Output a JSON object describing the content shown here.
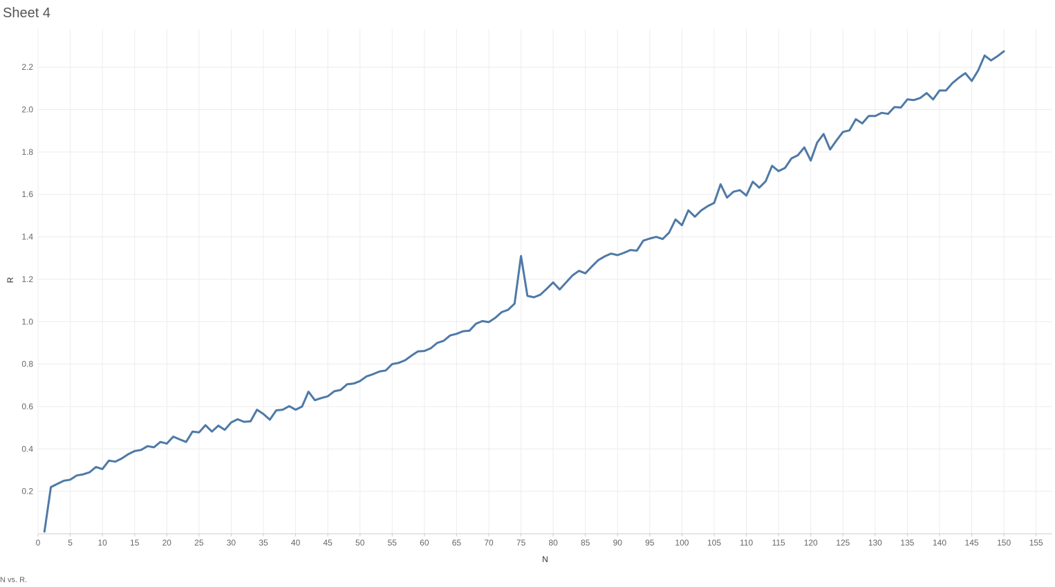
{
  "sheet": {
    "title": "Sheet 4",
    "caption": "N vs. R."
  },
  "colors": {
    "line": "#4e79a7",
    "grid": "#ececec",
    "text": "#666666"
  },
  "chart_data": {
    "type": "line",
    "title": "",
    "xlabel": "N",
    "ylabel": "R",
    "xlim": [
      0,
      157.5
    ],
    "ylim": [
      0,
      2.38
    ],
    "x_ticks": [
      0,
      5,
      10,
      15,
      20,
      25,
      30,
      35,
      40,
      45,
      50,
      55,
      60,
      65,
      70,
      75,
      80,
      85,
      90,
      95,
      100,
      105,
      110,
      115,
      120,
      125,
      130,
      135,
      140,
      145,
      150,
      155
    ],
    "y_ticks": [
      0.2,
      0.4,
      0.6,
      0.8,
      1.0,
      1.2,
      1.4,
      1.6,
      1.8,
      2.0,
      2.2
    ],
    "y_tick_labels": [
      "0.2",
      "0.4",
      "0.6",
      "0.8",
      "1.0",
      "1.2",
      "1.4",
      "1.6",
      "1.8",
      "2.0",
      "2.2"
    ],
    "grid": true,
    "series": [
      {
        "name": "",
        "x": [
          1,
          2,
          3,
          4,
          5,
          6,
          7,
          8,
          9,
          10,
          11,
          12,
          13,
          14,
          15,
          16,
          17,
          18,
          19,
          20,
          21,
          22,
          23,
          24,
          25,
          26,
          27,
          28,
          29,
          30,
          31,
          32,
          33,
          34,
          35,
          36,
          37,
          38,
          39,
          40,
          41,
          42,
          43,
          44,
          45,
          46,
          47,
          48,
          49,
          50,
          51,
          52,
          53,
          54,
          55,
          56,
          57,
          58,
          59,
          60,
          61,
          62,
          63,
          64,
          65,
          66,
          67,
          68,
          69,
          70,
          71,
          72,
          73,
          74,
          75,
          76,
          77,
          78,
          79,
          80,
          81,
          82,
          83,
          84,
          85,
          86,
          87,
          88,
          89,
          90,
          91,
          92,
          93,
          94,
          95,
          96,
          97,
          98,
          99,
          100,
          101,
          102,
          103,
          104,
          105,
          106,
          107,
          108,
          109,
          110,
          111,
          112,
          113,
          114,
          115,
          116,
          117,
          118,
          119,
          120,
          121,
          122,
          123,
          124,
          125,
          126,
          127,
          128,
          129,
          130,
          131,
          132,
          133,
          134,
          135,
          136,
          137,
          138,
          139,
          140,
          141,
          142,
          143,
          144,
          145,
          146,
          147,
          148,
          149,
          150
        ],
        "values": [
          0.01,
          0.22,
          0.235,
          0.25,
          0.255,
          0.275,
          0.28,
          0.29,
          0.315,
          0.305,
          0.345,
          0.34,
          0.355,
          0.375,
          0.39,
          0.395,
          0.413,
          0.408,
          0.433,
          0.425,
          0.458,
          0.445,
          0.433,
          0.482,
          0.478,
          0.512,
          0.482,
          0.51,
          0.49,
          0.525,
          0.54,
          0.528,
          0.53,
          0.585,
          0.565,
          0.538,
          0.582,
          0.585,
          0.602,
          0.585,
          0.6,
          0.67,
          0.63,
          0.64,
          0.648,
          0.672,
          0.678,
          0.705,
          0.708,
          0.72,
          0.742,
          0.752,
          0.765,
          0.77,
          0.8,
          0.806,
          0.818,
          0.84,
          0.86,
          0.862,
          0.875,
          0.9,
          0.91,
          0.935,
          0.943,
          0.955,
          0.958,
          0.99,
          1.003,
          0.998,
          1.018,
          1.045,
          1.056,
          1.085,
          1.31,
          1.122,
          1.115,
          1.127,
          1.155,
          1.185,
          1.152,
          1.185,
          1.218,
          1.24,
          1.228,
          1.26,
          1.29,
          1.308,
          1.321,
          1.314,
          1.325,
          1.338,
          1.335,
          1.382,
          1.392,
          1.4,
          1.39,
          1.42,
          1.482,
          1.455,
          1.525,
          1.495,
          1.525,
          1.545,
          1.56,
          1.648,
          1.585,
          1.613,
          1.62,
          1.595,
          1.66,
          1.632,
          1.662,
          1.735,
          1.71,
          1.725,
          1.77,
          1.785,
          1.822,
          1.76,
          1.845,
          1.885,
          1.812,
          1.855,
          1.895,
          1.902,
          1.955,
          1.935,
          1.97,
          1.97,
          1.985,
          1.98,
          2.012,
          2.01,
          2.048,
          2.045,
          2.055,
          2.078,
          2.048,
          2.09,
          2.09,
          2.125,
          2.15,
          2.172,
          2.135,
          2.185,
          2.255,
          2.232,
          2.252,
          2.275
        ]
      }
    ]
  }
}
